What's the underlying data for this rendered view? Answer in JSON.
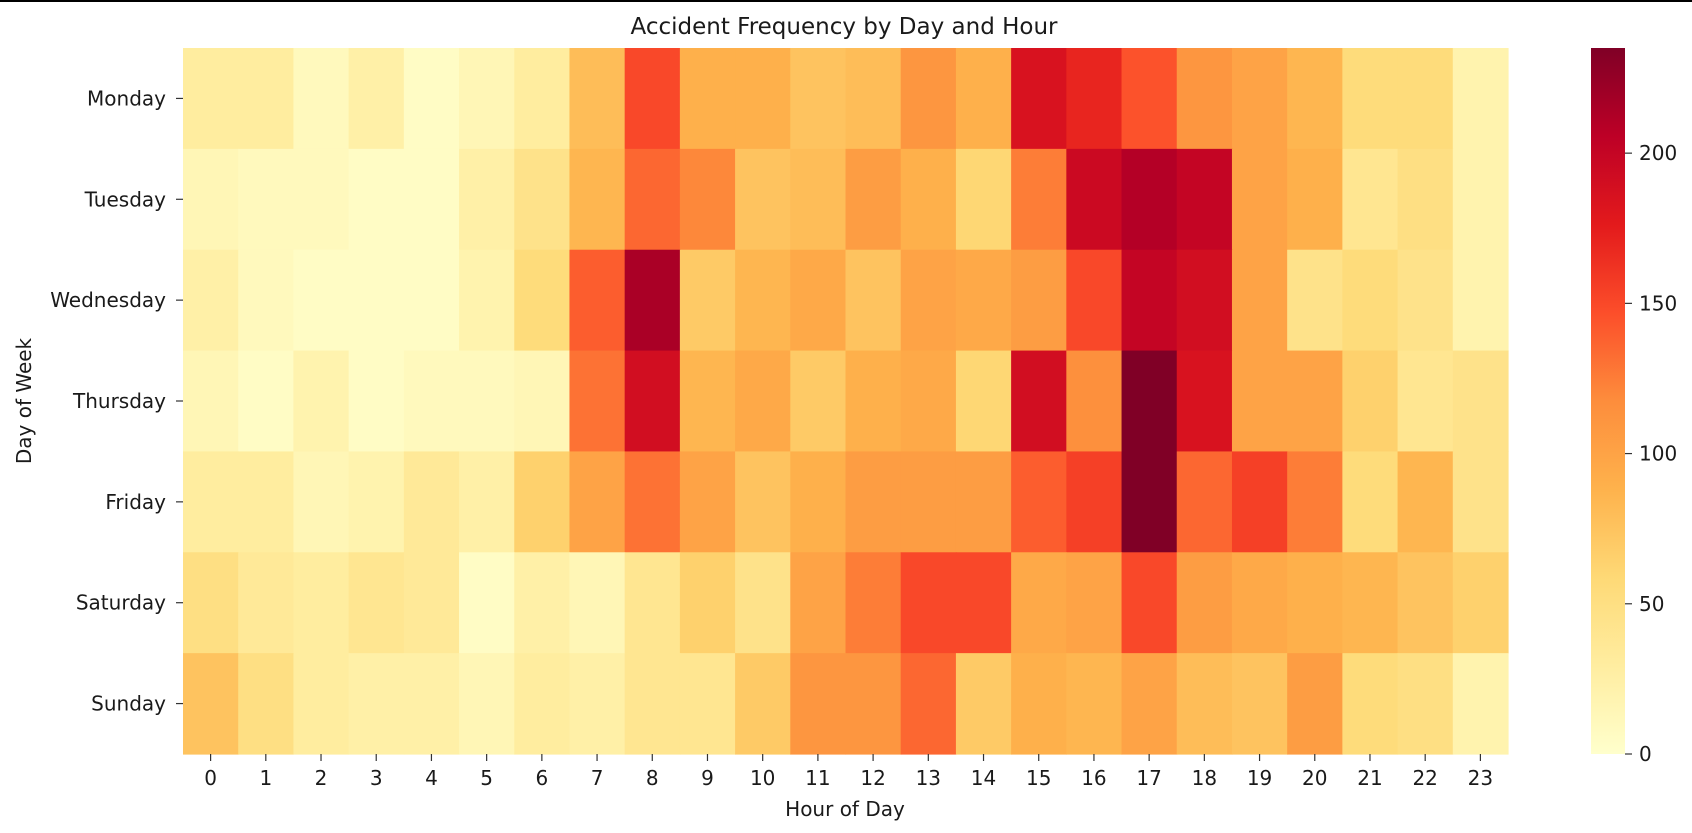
{
  "chart_data": {
    "type": "heatmap",
    "title": "Accident Frequency by Day and Hour",
    "xlabel": "Hour of Day",
    "ylabel": "Day of Week",
    "x": [
      "0",
      "1",
      "2",
      "3",
      "4",
      "5",
      "6",
      "7",
      "8",
      "9",
      "10",
      "11",
      "12",
      "13",
      "14",
      "15",
      "16",
      "17",
      "18",
      "19",
      "20",
      "21",
      "22",
      "23"
    ],
    "y": [
      "Monday",
      "Tuesday",
      "Wednesday",
      "Thursday",
      "Friday",
      "Saturday",
      "Sunday"
    ],
    "values": [
      [
        30,
        30,
        10,
        25,
        5,
        15,
        30,
        80,
        150,
        90,
        90,
        75,
        80,
        110,
        90,
        185,
        170,
        145,
        110,
        100,
        85,
        55,
        55,
        20
      ],
      [
        15,
        10,
        10,
        5,
        5,
        25,
        45,
        85,
        135,
        120,
        75,
        80,
        105,
        90,
        60,
        125,
        195,
        210,
        200,
        100,
        90,
        40,
        50,
        20
      ],
      [
        25,
        10,
        5,
        5,
        5,
        20,
        55,
        140,
        215,
        70,
        85,
        95,
        75,
        100,
        95,
        105,
        150,
        200,
        190,
        100,
        45,
        55,
        45,
        20
      ],
      [
        15,
        5,
        20,
        5,
        10,
        10,
        15,
        130,
        190,
        85,
        95,
        70,
        90,
        95,
        60,
        190,
        115,
        235,
        185,
        100,
        100,
        65,
        40,
        45
      ],
      [
        30,
        30,
        15,
        20,
        35,
        25,
        65,
        100,
        130,
        100,
        75,
        90,
        105,
        105,
        105,
        140,
        155,
        235,
        135,
        155,
        125,
        55,
        85,
        45
      ],
      [
        50,
        35,
        30,
        40,
        35,
        5,
        25,
        15,
        40,
        65,
        45,
        100,
        125,
        150,
        150,
        95,
        100,
        150,
        105,
        95,
        90,
        85,
        75,
        65
      ],
      [
        75,
        50,
        30,
        25,
        25,
        15,
        30,
        25,
        40,
        40,
        70,
        110,
        110,
        135,
        70,
        90,
        85,
        100,
        80,
        75,
        105,
        55,
        50,
        20
      ]
    ],
    "colorbar": {
      "min": 0,
      "max": 235,
      "ticks": [
        0,
        50,
        100,
        150,
        200
      ],
      "colormap": "YlOrRd"
    },
    "grid": false,
    "legend": "none"
  }
}
